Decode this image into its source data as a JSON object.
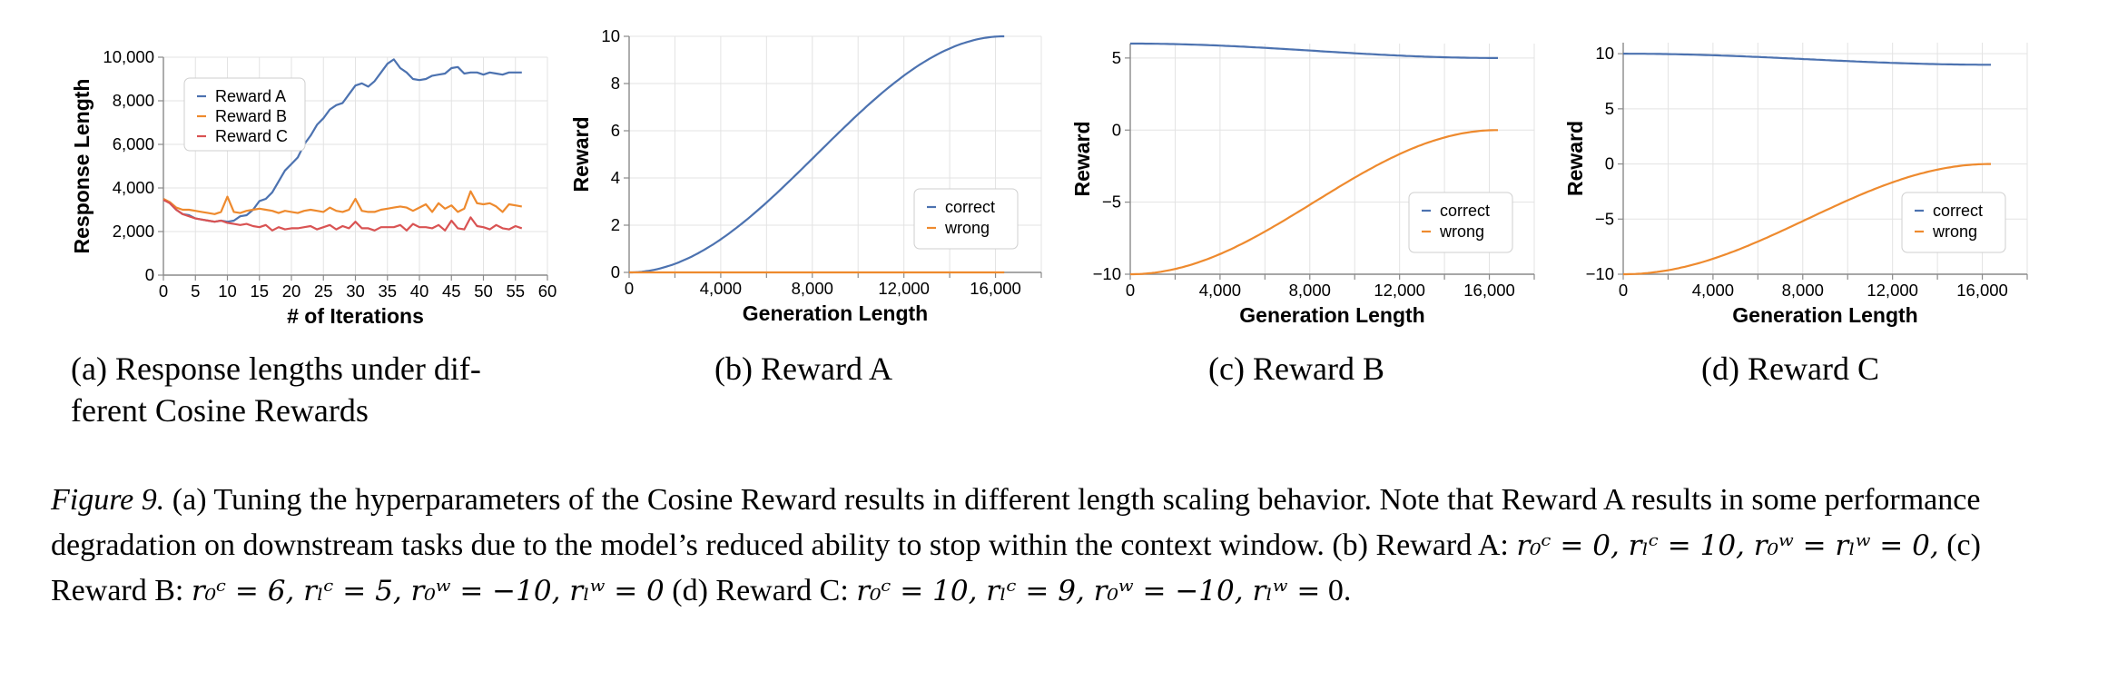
{
  "figure_label": "Figure 9.",
  "caption_lines": [
    "(a) Tuning the hyperparameters of the Cosine Reward results in different length scaling behavior. Note that Reward A results in",
    "some performance degradation on downstream tasks due to the model’s reduced ability to stop within the context window. (b) Reward A:",
    "(c) Reward B:",
    "(d) Reward C:",
    "0."
  ],
  "caption_math": {
    "reward_a": "r₀ᶜ = 0, rₗᶜ = 10, r₀ʷ = rₗʷ = 0,",
    "reward_b": "r₀ᶜ = 6, rₗᶜ = 5, r₀ʷ = −10, rₗʷ = 0",
    "reward_c": "r₀ᶜ = 10, rₗᶜ = 9, r₀ʷ = −10, rₗʷ ="
  },
  "colors": {
    "blue": "#4c72b0",
    "orange": "#ee8a2e",
    "red": "#d95353",
    "grid": "#e3e3e3",
    "axis": "#8a8a8a"
  },
  "chart_data": [
    {
      "type": "line",
      "subcaption": [
        "(a) Response lengths under dif-",
        "ferent Cosine Rewards"
      ],
      "xlabel": "# of Iterations",
      "ylabel": "Response Length",
      "xlim": [
        0,
        60
      ],
      "ylim": [
        0,
        10000
      ],
      "xticks": [
        0,
        5,
        10,
        15,
        20,
        25,
        30,
        35,
        40,
        45,
        50,
        55,
        60
      ],
      "xtick_labels": [
        "0",
        "5",
        "10",
        "15",
        "20",
        "25",
        "30",
        "35",
        "40",
        "45",
        "50",
        "55",
        "60"
      ],
      "yticks": [
        0,
        2000,
        4000,
        6000,
        8000,
        10000
      ],
      "ytick_labels": [
        "0",
        "2,000",
        "4,000",
        "6,000",
        "8,000",
        "10,000"
      ],
      "grid": true,
      "legend_position": "top-left",
      "x": [
        0,
        1,
        2,
        3,
        4,
        5,
        6,
        7,
        8,
        9,
        10,
        11,
        12,
        13,
        14,
        15,
        16,
        17,
        18,
        19,
        20,
        21,
        22,
        23,
        24,
        25,
        26,
        27,
        28,
        29,
        30,
        31,
        32,
        33,
        34,
        35,
        36,
        37,
        38,
        39,
        40,
        41,
        42,
        43,
        44,
        45,
        46,
        47,
        48,
        49,
        50,
        51,
        52,
        53,
        54,
        55,
        56
      ],
      "series": [
        {
          "name": "Reward A",
          "color": "#4c72b0",
          "values": [
            3500,
            3300,
            3000,
            2800,
            2750,
            2600,
            2550,
            2500,
            2450,
            2500,
            2450,
            2500,
            2700,
            2750,
            3000,
            3400,
            3500,
            3800,
            4300,
            4800,
            5100,
            5400,
            6000,
            6400,
            6900,
            7200,
            7600,
            7800,
            7900,
            8300,
            8700,
            8800,
            8650,
            8900,
            9300,
            9700,
            9900,
            9500,
            9300,
            9000,
            8950,
            9000,
            9150,
            9200,
            9250,
            9500,
            9550,
            9250,
            9300,
            9300,
            9200,
            9300,
            9250,
            9200,
            9300,
            9300,
            9300
          ]
        },
        {
          "name": "Reward B",
          "color": "#ee8a2e",
          "values": [
            3500,
            3350,
            3100,
            3000,
            3000,
            2950,
            2900,
            2850,
            2800,
            2900,
            3600,
            2900,
            2850,
            2950,
            3000,
            3050,
            3000,
            2950,
            2850,
            2950,
            2900,
            2850,
            2950,
            3000,
            2950,
            2900,
            3100,
            2950,
            2900,
            3000,
            3500,
            2950,
            2900,
            2900,
            3000,
            3050,
            3100,
            3150,
            3100,
            2950,
            3100,
            3250,
            2900,
            3300,
            3050,
            3200,
            2900,
            3050,
            3850,
            3300,
            3250,
            3300,
            3150,
            2900,
            3250,
            3200,
            3150
          ]
        },
        {
          "name": "Reward C",
          "color": "#d95353",
          "values": [
            3450,
            3300,
            3000,
            2800,
            2700,
            2600,
            2550,
            2500,
            2450,
            2500,
            2400,
            2350,
            2300,
            2350,
            2250,
            2200,
            2300,
            2050,
            2200,
            2100,
            2150,
            2150,
            2200,
            2250,
            2100,
            2200,
            2300,
            2100,
            2250,
            2150,
            2450,
            2150,
            2150,
            2050,
            2200,
            2200,
            2200,
            2300,
            2050,
            2350,
            2200,
            2200,
            2150,
            2300,
            2050,
            2500,
            2150,
            2100,
            2650,
            2250,
            2200,
            2100,
            2300,
            2150,
            2100,
            2250,
            2150
          ]
        }
      ]
    },
    {
      "type": "line",
      "subcaption": [
        "(b) Reward A"
      ],
      "xlabel": "Generation Length",
      "ylabel": "Reward",
      "xlim": [
        0,
        18000
      ],
      "ylim": [
        0,
        10
      ],
      "xticks": [
        0,
        2000,
        4000,
        6000,
        8000,
        10000,
        12000,
        14000,
        16000,
        18000
      ],
      "xtick_labels": [
        "0",
        "",
        "4,000",
        "",
        "8,000",
        "",
        "12,000",
        "",
        "16,000",
        ""
      ],
      "yticks": [
        0,
        2,
        4,
        6,
        8,
        10
      ],
      "ytick_labels": [
        "0",
        "2",
        "4",
        "6",
        "8",
        "10"
      ],
      "grid": true,
      "legend_position": "bottom-right",
      "curve": "cosine",
      "length_max": 16384,
      "series": [
        {
          "name": "correct",
          "color": "#4c72b0",
          "start": 0,
          "end": 10
        },
        {
          "name": "wrong",
          "color": "#ee8a2e",
          "start": 0,
          "end": 0
        }
      ]
    },
    {
      "type": "line",
      "subcaption": [
        "(c) Reward B"
      ],
      "xlabel": "Generation Length",
      "ylabel": "Reward",
      "xlim": [
        0,
        18000
      ],
      "ylim": [
        -10,
        6
      ],
      "xticks": [
        0,
        2000,
        4000,
        6000,
        8000,
        10000,
        12000,
        14000,
        16000,
        18000
      ],
      "xtick_labels": [
        "0",
        "",
        "4,000",
        "",
        "8,000",
        "",
        "12,000",
        "",
        "16,000",
        ""
      ],
      "yticks": [
        -10,
        -5,
        0,
        5
      ],
      "ytick_labels": [
        "−10",
        "−5",
        "0",
        "5"
      ],
      "grid": true,
      "legend_position": "bottom-right",
      "curve": "cosine",
      "length_max": 16384,
      "series": [
        {
          "name": "correct",
          "color": "#4c72b0",
          "start": 6,
          "end": 5
        },
        {
          "name": "wrong",
          "color": "#ee8a2e",
          "start": -10,
          "end": 0
        }
      ]
    },
    {
      "type": "line",
      "subcaption": [
        "(d) Reward C"
      ],
      "xlabel": "Generation Length",
      "ylabel": "Reward",
      "xlim": [
        0,
        18000
      ],
      "ylim": [
        -10,
        11
      ],
      "xticks": [
        0,
        2000,
        4000,
        6000,
        8000,
        10000,
        12000,
        14000,
        16000,
        18000
      ],
      "xtick_labels": [
        "0",
        "",
        "4,000",
        "",
        "8,000",
        "",
        "12,000",
        "",
        "16,000",
        ""
      ],
      "yticks": [
        -10,
        -5,
        0,
        5,
        10
      ],
      "ytick_labels": [
        "−10",
        "−5",
        "0",
        "5",
        "10"
      ],
      "grid": true,
      "legend_position": "bottom-right",
      "curve": "cosine",
      "length_max": 16384,
      "series": [
        {
          "name": "correct",
          "color": "#4c72b0",
          "start": 10,
          "end": 9
        },
        {
          "name": "wrong",
          "color": "#ee8a2e",
          "start": -10,
          "end": 0
        }
      ]
    }
  ]
}
